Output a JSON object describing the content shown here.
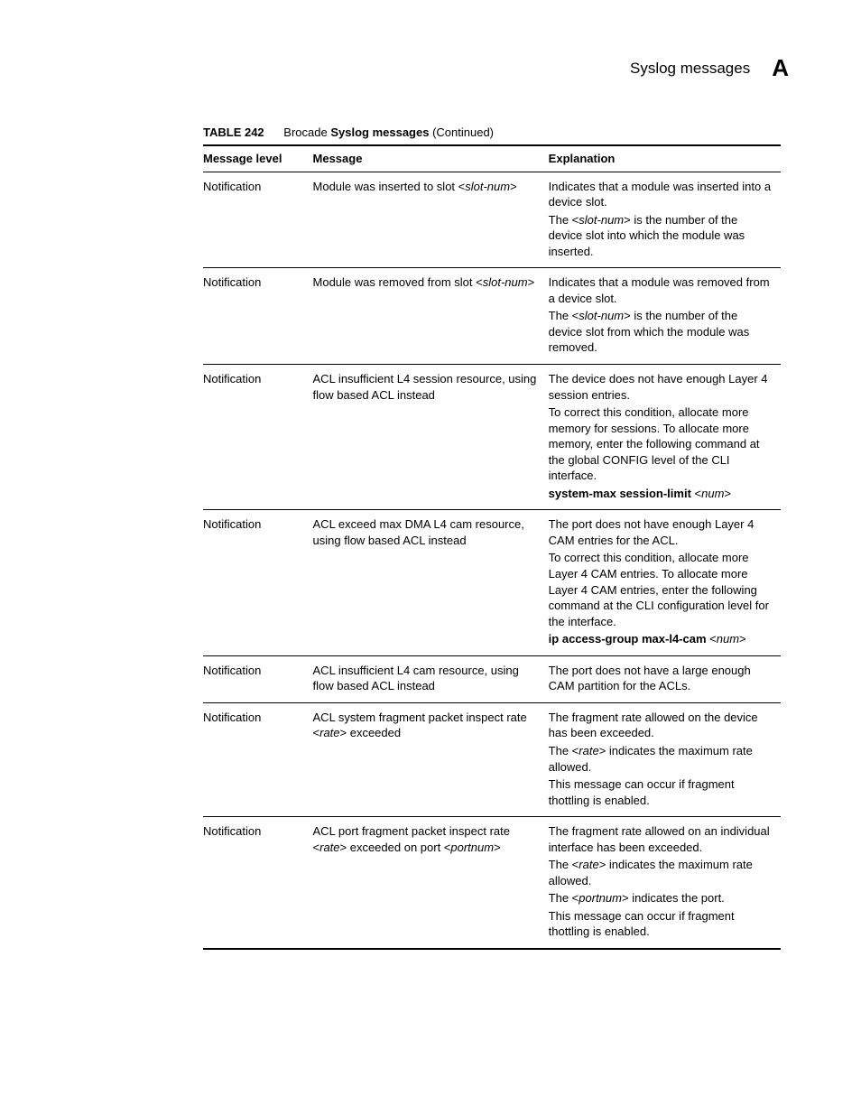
{
  "header": {
    "title": "Syslog messages",
    "letter": "A"
  },
  "table": {
    "label": "TABLE 242",
    "title_prefix": "Brocade ",
    "title_bold": "Syslog messages",
    "title_suffix": " (Continued)",
    "columns": {
      "level": "Message level",
      "message": "Message",
      "explanation": "Explanation"
    },
    "rows": [
      {
        "level": "Notification",
        "msg": [
          {
            "text": "Module was inserted to slot <"
          },
          {
            "text": "slot-num",
            "ital": true
          },
          {
            "text": ">"
          }
        ],
        "exp": [
          [
            {
              "text": "Indicates that a module was inserted into a device slot."
            }
          ],
          [
            {
              "text": "The <"
            },
            {
              "text": "slot-num",
              "ital": true
            },
            {
              "text": "> is the number of the device slot into which the module was inserted."
            }
          ]
        ]
      },
      {
        "level": "Notification",
        "msg": [
          {
            "text": "Module was removed from slot <"
          },
          {
            "text": "slot-num",
            "ital": true
          },
          {
            "text": ">"
          }
        ],
        "exp": [
          [
            {
              "text": "Indicates that a module was removed from a device slot."
            }
          ],
          [
            {
              "text": "The <"
            },
            {
              "text": "slot-num",
              "ital": true
            },
            {
              "text": "> is the number of the device slot from which the module was removed."
            }
          ]
        ]
      },
      {
        "level": "Notification",
        "msg": [
          {
            "text": "ACL insufficient L4 session resource, using flow based ACL instead"
          }
        ],
        "exp": [
          [
            {
              "text": "The device does not have enough Layer 4 session entries."
            }
          ],
          [
            {
              "text": "To correct this condition, allocate more memory for sessions.  To allocate more memory, enter the following command at the global CONFIG level of the CLI interface."
            }
          ],
          [
            {
              "text": "system-max session-limit ",
              "bold": true
            },
            {
              "text": "<"
            },
            {
              "text": "num",
              "ital": true
            },
            {
              "text": ">"
            }
          ]
        ]
      },
      {
        "level": "Notification",
        "msg": [
          {
            "text": "ACL exceed max DMA L4 cam resource, using flow based ACL instead"
          }
        ],
        "exp": [
          [
            {
              "text": "The port does not have enough Layer 4 CAM entries for the ACL."
            }
          ],
          [
            {
              "text": "To correct this condition, allocate more Layer 4 CAM entries.  To allocate more Layer 4 CAM entries, enter the following command at the CLI configuration level for the interface."
            }
          ],
          [
            {
              "text": "ip access-group max-l4-cam ",
              "bold": true
            },
            {
              "text": "<"
            },
            {
              "text": "num",
              "ital": true
            },
            {
              "text": ">"
            }
          ]
        ]
      },
      {
        "level": "Notification",
        "msg": [
          {
            "text": "ACL insufficient L4 cam resource, using flow based ACL instead"
          }
        ],
        "exp": [
          [
            {
              "text": "The port does not have a large enough CAM partition for the ACLs."
            }
          ]
        ]
      },
      {
        "level": "Notification",
        "msg": [
          {
            "text": "ACL system fragment packet inspect rate <"
          },
          {
            "text": "rate",
            "ital": true
          },
          {
            "text": "> exceeded"
          }
        ],
        "exp": [
          [
            {
              "text": "The fragment rate allowed on the device has been exceeded."
            }
          ],
          [
            {
              "text": "The <"
            },
            {
              "text": "rate",
              "ital": true
            },
            {
              "text": "> indicates the maximum rate allowed."
            }
          ],
          [
            {
              "text": "This message can occur if fragment thottling is enabled."
            }
          ]
        ]
      },
      {
        "level": "Notification",
        "msg": [
          {
            "text": "ACL port fragment packet inspect rate <"
          },
          {
            "text": "rate",
            "ital": true
          },
          {
            "text": "> exceeded on port <"
          },
          {
            "text": "portnum",
            "ital": true
          },
          {
            "text": ">"
          }
        ],
        "exp": [
          [
            {
              "text": "The fragment rate allowed on an individual interface has been exceeded."
            }
          ],
          [
            {
              "text": "The <"
            },
            {
              "text": "rate",
              "ital": true
            },
            {
              "text": "> indicates the maximum rate allowed."
            }
          ],
          [
            {
              "text": "The <"
            },
            {
              "text": "portnum",
              "ital": true
            },
            {
              "text": "> indicates the port."
            }
          ],
          [
            {
              "text": "This message can occur if fragment thottling is enabled."
            }
          ]
        ]
      }
    ]
  }
}
